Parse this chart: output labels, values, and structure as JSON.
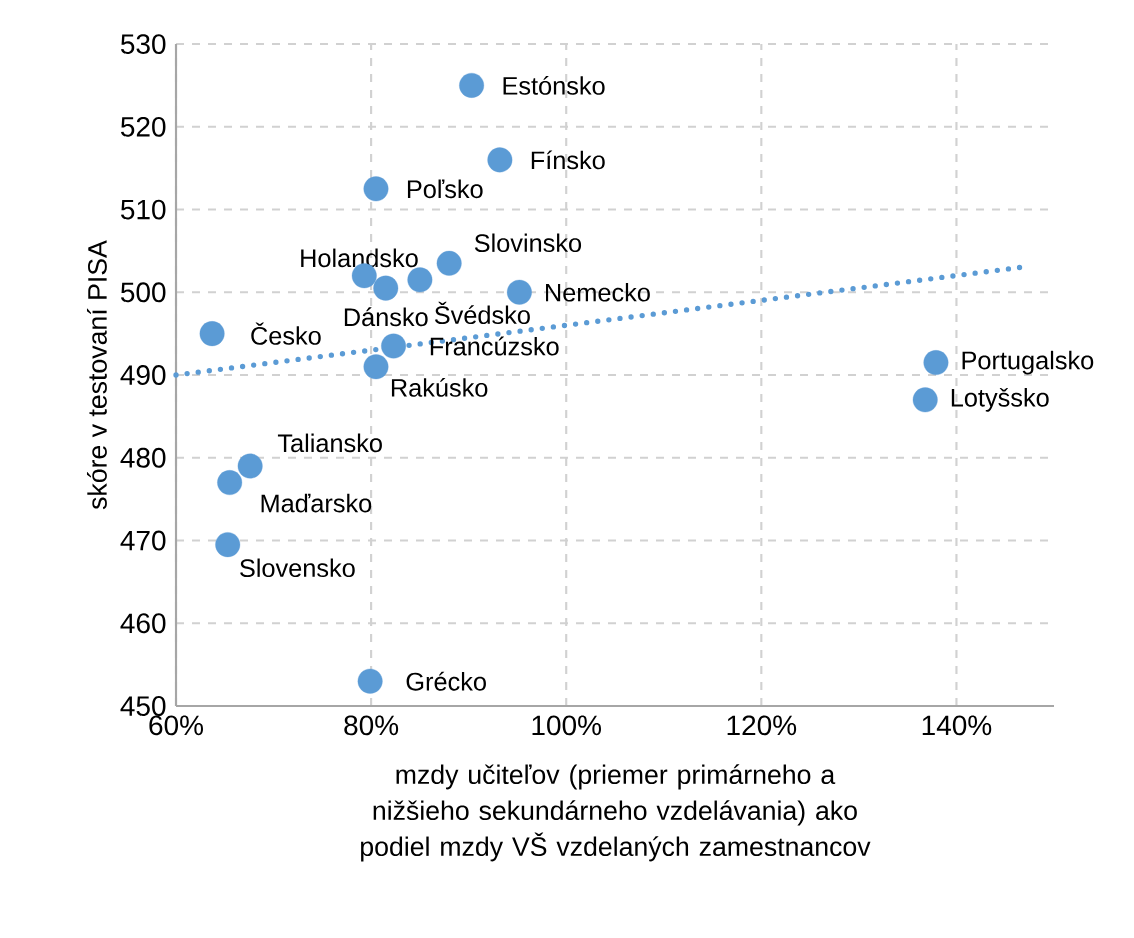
{
  "chart_data": {
    "type": "scatter",
    "xlabel": "mzdy učiteľov (priemer primárneho a nižšieho sekundárneho vzdelávania) ako podiel mzdy VŠ vzdelaných zamestnancov",
    "ylabel": "skóre v testovaní PISA",
    "xlim": [
      60,
      150
    ],
    "ylim": [
      450,
      530
    ],
    "xticks": [
      {
        "value": 60,
        "label": "60%"
      },
      {
        "value": 80,
        "label": "80%"
      },
      {
        "value": 100,
        "label": "100%"
      },
      {
        "value": 120,
        "label": "120%"
      },
      {
        "value": 140,
        "label": "140%"
      }
    ],
    "yticks": [
      450,
      460,
      470,
      480,
      490,
      500,
      510,
      520,
      530
    ],
    "grid": true,
    "series": [
      {
        "type": "scatter",
        "color": "#5b9bd5",
        "marker": "circle",
        "x": [
          90.3,
          93.2,
          80.5,
          79.3,
          81.5,
          85.0,
          88.0,
          95.2,
          63.7,
          82.3,
          80.5,
          137.9,
          136.8,
          67.6,
          65.5,
          65.3,
          79.9
        ],
        "values": [
          525,
          516,
          512.5,
          502,
          500.5,
          501.5,
          503.5,
          500,
          495,
          493.5,
          491,
          491.5,
          487,
          479,
          477,
          469.5,
          453
        ]
      },
      {
        "type": "line",
        "color": "#5b9bd5",
        "marker": "none",
        "line_style": "dotted",
        "x": [
          60,
          146.5
        ],
        "values": [
          490,
          503
        ]
      }
    ],
    "annotations": [
      {
        "text": "Estónsko",
        "x": 90.3,
        "y": 525
      },
      {
        "text": "Fínsko",
        "x": 93.2,
        "y": 516
      },
      {
        "text": "Poľsko",
        "x": 80.5,
        "y": 512.5
      },
      {
        "text": "Holandsko",
        "x": 79.3,
        "y": 502
      },
      {
        "text": "Dánsko",
        "x": 81.5,
        "y": 500.5
      },
      {
        "text": "Švédsko",
        "x": 85.0,
        "y": 501.5
      },
      {
        "text": "Slovinsko",
        "x": 88.0,
        "y": 503.5
      },
      {
        "text": "Nemecko",
        "x": 95.2,
        "y": 500
      },
      {
        "text": "Česko",
        "x": 63.7,
        "y": 495
      },
      {
        "text": "Francúzsko",
        "x": 82.3,
        "y": 493.5
      },
      {
        "text": "Rakúsko",
        "x": 80.5,
        "y": 491
      },
      {
        "text": "Portugalsko",
        "x": 137.9,
        "y": 491.5
      },
      {
        "text": "Lotyšsko",
        "x": 136.8,
        "y": 487
      },
      {
        "text": "Taliansko",
        "x": 67.6,
        "y": 479
      },
      {
        "text": "Maďarsko",
        "x": 65.5,
        "y": 477
      },
      {
        "text": "Slovensko",
        "x": 65.3,
        "y": 469.5
      },
      {
        "text": "Grécko",
        "x": 79.9,
        "y": 453
      }
    ]
  }
}
